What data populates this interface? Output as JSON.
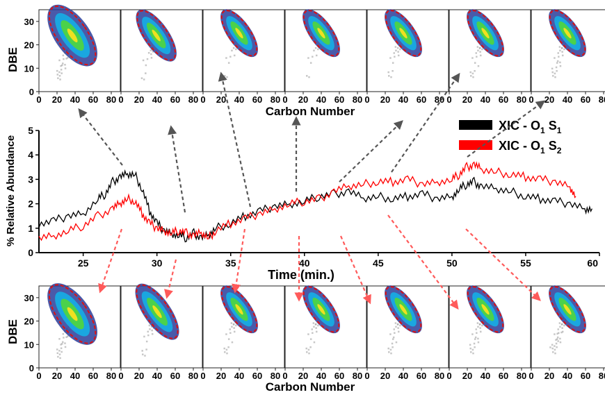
{
  "panels": {
    "y_label": "DBE",
    "x_label": "Carbon Number",
    "x_ticks": [
      "0",
      "20",
      "40",
      "60",
      "80"
    ],
    "y_ticks": [
      "0",
      "10",
      "20",
      "30"
    ],
    "xlim": [
      0,
      90
    ],
    "ylim": [
      0,
      35
    ]
  },
  "top_panel_centers": [
    {
      "c": 37,
      "d": 24,
      "spread": 1.6,
      "tail": 0.9
    },
    {
      "c": 39,
      "d": 24,
      "spread": 1.0,
      "tail": 0.4
    },
    {
      "c": 40,
      "d": 25,
      "spread": 0.9,
      "tail": 0.3
    },
    {
      "c": 40,
      "d": 25,
      "spread": 0.9,
      "tail": 0.3
    },
    {
      "c": 40,
      "d": 25,
      "spread": 0.9,
      "tail": 0.5
    },
    {
      "c": 40,
      "d": 25,
      "spread": 0.9,
      "tail": 0.6
    },
    {
      "c": 40,
      "d": 25,
      "spread": 0.9,
      "tail": 0.8
    }
  ],
  "bottom_panel_centers": [
    {
      "c": 37,
      "d": 23,
      "spread": 1.6,
      "tail": 0.9
    },
    {
      "c": 40,
      "d": 24,
      "spread": 1.1,
      "tail": 0.5
    },
    {
      "c": 40,
      "d": 25,
      "spread": 0.9,
      "tail": 0.6
    },
    {
      "c": 40,
      "d": 25,
      "spread": 0.9,
      "tail": 0.6
    },
    {
      "c": 40,
      "d": 25,
      "spread": 0.9,
      "tail": 0.7
    },
    {
      "c": 40,
      "d": 25,
      "spread": 0.9,
      "tail": 0.8
    },
    {
      "c": 40,
      "d": 25,
      "spread": 0.9,
      "tail": 1.0
    }
  ],
  "chart_data": {
    "type": "line",
    "xlabel": "Time (min.)",
    "ylabel": "% Relative Abundance",
    "xlim": [
      22,
      60
    ],
    "ylim": [
      0,
      5
    ],
    "x_ticks": [
      25,
      30,
      35,
      40,
      45,
      50,
      55,
      60
    ],
    "x_tick_labels": [
      "25",
      "30",
      "35",
      "40",
      "45",
      "50",
      "55",
      "60"
    ],
    "y_ticks": [
      0,
      1,
      2,
      3,
      4,
      5
    ],
    "legend_position": "top-right",
    "series": [
      {
        "name_main": "XIC - O",
        "name_sub1": "1",
        "name_mid": " S",
        "name_sub2": "1",
        "color": "#000000",
        "x": [
          22.0,
          23.0,
          24.0,
          25.0,
          26.0,
          26.5,
          27.0,
          27.5,
          28.0,
          28.5,
          29.0,
          29.5,
          30.0,
          30.5,
          31.0,
          31.5,
          32.0,
          32.5,
          33.0,
          33.5,
          34.0,
          35.0,
          36.0,
          37.0,
          38.0,
          39.0,
          40.0,
          41.0,
          42.0,
          43.0,
          44.0,
          45.0,
          46.0,
          47.0,
          48.0,
          49.0,
          50.0,
          50.5,
          51.0,
          51.5,
          52.0,
          53.0,
          54.0,
          55.0,
          56.0,
          57.0,
          58.0,
          59.0,
          59.5
        ],
        "y": [
          1.2,
          1.3,
          1.5,
          1.6,
          2.2,
          2.4,
          2.9,
          3.1,
          3.2,
          3.2,
          2.6,
          1.7,
          1.2,
          0.9,
          0.8,
          0.7,
          0.6,
          0.8,
          0.6,
          0.7,
          1.0,
          1.2,
          1.5,
          1.7,
          1.9,
          2.0,
          2.1,
          2.3,
          2.4,
          2.5,
          2.2,
          2.3,
          2.2,
          2.3,
          2.4,
          2.2,
          2.3,
          2.6,
          2.8,
          2.9,
          2.7,
          2.6,
          2.5,
          2.3,
          2.2,
          2.1,
          2.0,
          1.8,
          1.8
        ]
      },
      {
        "name_main": "XIC - O",
        "name_sub1": "1",
        "name_mid": " S",
        "name_sub2": "2",
        "color": "#ff0000",
        "x": [
          22.0,
          23.0,
          24.0,
          25.0,
          26.0,
          27.0,
          27.5,
          28.0,
          28.5,
          29.0,
          29.5,
          30.0,
          30.5,
          31.0,
          31.5,
          32.0,
          32.5,
          33.0,
          33.5,
          34.0,
          35.0,
          36.0,
          37.0,
          38.0,
          39.0,
          40.0,
          41.0,
          42.0,
          43.0,
          44.0,
          45.0,
          46.0,
          47.0,
          48.0,
          49.0,
          50.0,
          50.5,
          51.0,
          51.5,
          52.0,
          53.0,
          54.0,
          55.0,
          56.0,
          57.0,
          58.0,
          58.4
        ],
        "y": [
          0.6,
          0.7,
          0.9,
          1.1,
          1.5,
          1.8,
          2.0,
          2.2,
          2.1,
          1.6,
          1.2,
          1.0,
          0.9,
          0.8,
          0.9,
          0.8,
          0.7,
          0.8,
          0.6,
          0.9,
          1.2,
          1.4,
          1.6,
          1.8,
          2.0,
          2.1,
          2.2,
          2.5,
          2.7,
          2.8,
          2.9,
          2.9,
          3.0,
          2.8,
          2.9,
          3.0,
          3.2,
          3.5,
          3.6,
          3.4,
          3.3,
          3.2,
          3.1,
          3.0,
          2.9,
          2.7,
          2.3
        ]
      }
    ],
    "annotations": "dashed arrows link times on the chromatogram to the DBE vs. Carbon Number plots above (O1S1, gray) and below (O1S2, red)"
  }
}
